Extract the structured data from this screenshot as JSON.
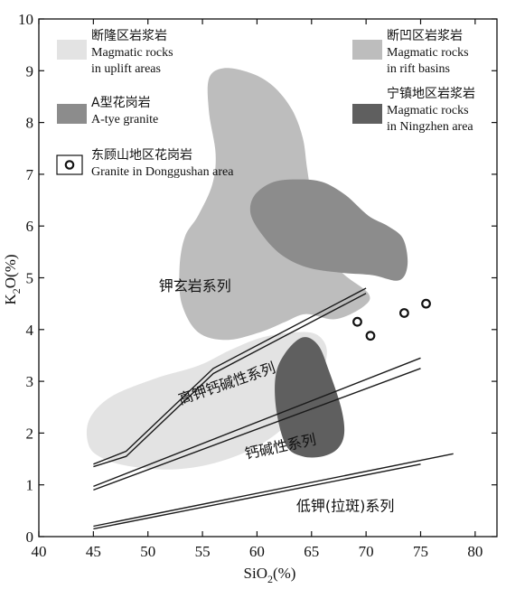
{
  "chart_data": {
    "type": "scatter",
    "xlabel": "SiO2(%)",
    "ylabel": "K2O(%)",
    "xlim": [
      40,
      82
    ],
    "ylim": [
      0,
      10
    ],
    "x_ticks": [
      40,
      45,
      50,
      55,
      60,
      65,
      70,
      75,
      80
    ],
    "y_ticks": [
      0,
      1,
      2,
      3,
      4,
      5,
      6,
      7,
      8,
      9,
      10
    ],
    "legend": [
      {
        "zh": "断隆区岩浆岩",
        "en1": "Magmatic rocks",
        "en2": "in uplift areas",
        "color": "#e3e3e3",
        "symbol": "box"
      },
      {
        "zh": "断凹区岩浆岩",
        "en1": "Magmatic rocks",
        "en2": "in rift basins",
        "color": "#bdbdbd",
        "symbol": "box"
      },
      {
        "zh": "A型花岗岩",
        "en1": "A-tye granite",
        "en2": "",
        "color": "#8c8c8c",
        "symbol": "box"
      },
      {
        "zh": "宁镇地区岩浆岩",
        "en1": "Magmatic rocks",
        "en2": "in Ningzhen area",
        "color": "#5f5f5f",
        "symbol": "box"
      },
      {
        "zh": "东顾山地区花岗岩",
        "en1": "Granite in Donggushan area",
        "en2": "",
        "color": "#111111",
        "symbol": "circle"
      }
    ],
    "fields": [
      {
        "name": "断隆区岩浆岩",
        "color": "#e3e3e3",
        "polygon": [
          [
            44.6,
            2.25
          ],
          [
            46.6,
            2.7
          ],
          [
            50.6,
            3.05
          ],
          [
            54.6,
            3.3
          ],
          [
            57.5,
            3.6
          ],
          [
            60.5,
            3.85
          ],
          [
            63.6,
            3.95
          ],
          [
            65.5,
            3.9
          ],
          [
            66.4,
            3.6
          ],
          [
            65.8,
            3.1
          ],
          [
            63.6,
            2.35
          ],
          [
            60.5,
            1.8
          ],
          [
            56.6,
            1.45
          ],
          [
            52.6,
            1.3
          ],
          [
            48.6,
            1.35
          ],
          [
            46.0,
            1.5
          ],
          [
            44.6,
            1.75
          ]
        ]
      },
      {
        "name": "断凹区岩浆岩",
        "color": "#bdbdbd",
        "polygon": [
          [
            55.6,
            8.85
          ],
          [
            57.0,
            9.05
          ],
          [
            59.5,
            8.95
          ],
          [
            61.5,
            8.7
          ],
          [
            63.2,
            8.25
          ],
          [
            64.2,
            7.7
          ],
          [
            64.6,
            7.1
          ],
          [
            65.2,
            6.3
          ],
          [
            66.0,
            5.6
          ],
          [
            67.8,
            5.1
          ],
          [
            70.2,
            4.7
          ],
          [
            69.8,
            4.45
          ],
          [
            67.2,
            4.2
          ],
          [
            64.5,
            4.3
          ],
          [
            62.6,
            4.15
          ],
          [
            60.3,
            3.95
          ],
          [
            57.2,
            3.8
          ],
          [
            54.6,
            3.95
          ],
          [
            53.1,
            4.5
          ],
          [
            52.9,
            5.2
          ],
          [
            53.4,
            5.8
          ],
          [
            54.6,
            6.2
          ],
          [
            55.9,
            6.8
          ],
          [
            56.2,
            7.4
          ],
          [
            55.6,
            8.2
          ]
        ]
      },
      {
        "name": "A型花岗岩",
        "color": "#8c8c8c",
        "polygon": [
          [
            59.8,
            6.6
          ],
          [
            61.5,
            6.85
          ],
          [
            63.8,
            6.9
          ],
          [
            66.0,
            6.85
          ],
          [
            68.1,
            6.6
          ],
          [
            70.2,
            6.2
          ],
          [
            72.0,
            6.0
          ],
          [
            73.4,
            5.75
          ],
          [
            73.8,
            5.25
          ],
          [
            73.0,
            4.95
          ],
          [
            70.6,
            5.05
          ],
          [
            67.6,
            5.1
          ],
          [
            64.6,
            5.2
          ],
          [
            62.2,
            5.45
          ],
          [
            60.4,
            5.85
          ],
          [
            59.4,
            6.25
          ]
        ]
      },
      {
        "name": "宁镇地区岩浆岩",
        "color": "#5f5f5f",
        "polygon": [
          [
            62.6,
            3.55
          ],
          [
            64.2,
            3.85
          ],
          [
            65.6,
            3.7
          ],
          [
            66.6,
            3.2
          ],
          [
            67.7,
            2.5
          ],
          [
            68.0,
            2.0
          ],
          [
            67.4,
            1.7
          ],
          [
            66.0,
            1.55
          ],
          [
            64.2,
            1.55
          ],
          [
            62.7,
            1.75
          ],
          [
            61.8,
            2.4
          ],
          [
            61.7,
            3.1
          ]
        ]
      }
    ],
    "boundary_lines": [
      [
        [
          45,
          1.35
        ],
        [
          48,
          1.55
        ],
        [
          56,
          3.15
        ],
        [
          70,
          4.7
        ]
      ],
      [
        [
          45,
          1.4
        ],
        [
          48,
          1.65
        ],
        [
          56,
          3.25
        ],
        [
          70,
          4.8
        ]
      ],
      [
        [
          45,
          0.9
        ],
        [
          75,
          3.25
        ]
      ],
      [
        [
          45,
          0.97
        ],
        [
          75,
          3.45
        ]
      ],
      [
        [
          45,
          0.15
        ],
        [
          75,
          1.4
        ]
      ],
      [
        [
          45,
          0.2
        ],
        [
          78,
          1.6
        ]
      ]
    ],
    "series_labels": [
      {
        "text": "钾玄岩系列",
        "x": 51.0,
        "y": 4.75,
        "angle": 0
      },
      {
        "text": "高钾钙碱性系列",
        "x": 53.0,
        "y": 2.55,
        "angle": -19
      },
      {
        "text": "钙碱性系列",
        "x": 59.0,
        "y": 1.5,
        "angle": -12
      },
      {
        "text": "低钾(拉斑)系列",
        "x": 63.6,
        "y": 0.5,
        "angle": 0
      }
    ],
    "points": [
      {
        "x": 69.2,
        "y": 4.15
      },
      {
        "x": 70.4,
        "y": 3.88
      },
      {
        "x": 73.5,
        "y": 4.32
      },
      {
        "x": 75.5,
        "y": 4.5
      }
    ]
  }
}
